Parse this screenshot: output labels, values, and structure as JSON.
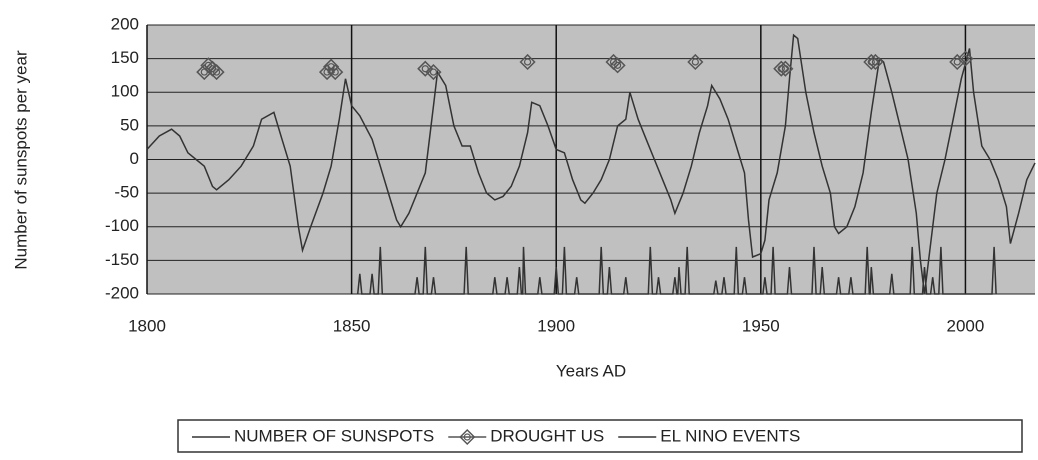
{
  "chart_data": {
    "type": "line",
    "y_label": "Number of sunspots per year",
    "x_label": "Years AD",
    "xlim": [
      1800,
      2017
    ],
    "xticks": [
      1800,
      1850,
      1900,
      1950,
      2000
    ],
    "ylim": [
      -200,
      200
    ],
    "yticks": [
      -200,
      -150,
      -100,
      -50,
      0,
      50,
      100,
      150,
      200
    ],
    "grid": true,
    "plot_background": "#c0c0c0",
    "legend": "bottom",
    "series": [
      {
        "name": "NUMBER OF SUNSPOTS",
        "color": "#333333",
        "style": "line",
        "x": [
          1800,
          1803,
          1806,
          1808,
          1810,
          1812,
          1814,
          1816,
          1817,
          1820,
          1823,
          1826,
          1828,
          1831,
          1833,
          1835,
          1837,
          1838,
          1840,
          1843,
          1845,
          1847,
          1848.5,
          1850,
          1852,
          1855,
          1857,
          1859,
          1861,
          1862,
          1864,
          1866,
          1868,
          1870,
          1871,
          1873,
          1875,
          1877,
          1879,
          1881,
          1883,
          1885,
          1887,
          1889,
          1891,
          1893,
          1894,
          1896,
          1898,
          1900,
          1902,
          1904,
          1906,
          1907,
          1909,
          1911,
          1913,
          1915,
          1917,
          1918,
          1920,
          1922,
          1924,
          1926,
          1928,
          1929,
          1931,
          1933,
          1935,
          1937,
          1938,
          1940,
          1942,
          1944,
          1946,
          1947,
          1948,
          1950,
          1951,
          1952,
          1954,
          1956,
          1957,
          1958,
          1959,
          1961,
          1963,
          1965,
          1967,
          1968,
          1969,
          1971,
          1973,
          1975,
          1977,
          1979,
          1980,
          1982,
          1984,
          1986,
          1988,
          1989,
          1990,
          1991,
          1993,
          1995,
          1997,
          1999,
          2001,
          2002,
          2004,
          2006,
          2008,
          2010,
          2011,
          2013,
          2015,
          2017
        ],
        "values": [
          15,
          35,
          45,
          35,
          10,
          0,
          -10,
          -40,
          -45,
          -30,
          -10,
          20,
          60,
          70,
          30,
          -10,
          -100,
          -135,
          -100,
          -50,
          -10,
          60,
          120,
          80,
          65,
          30,
          -10,
          -50,
          -90,
          -100,
          -80,
          -50,
          -20,
          80,
          130,
          110,
          50,
          20,
          20,
          -20,
          -50,
          -60,
          -55,
          -40,
          -10,
          40,
          85,
          80,
          50,
          15,
          10,
          -30,
          -60,
          -65,
          -50,
          -30,
          0,
          50,
          60,
          100,
          60,
          30,
          0,
          -30,
          -60,
          -80,
          -50,
          -10,
          40,
          80,
          110,
          90,
          60,
          20,
          -20,
          -90,
          -145,
          -140,
          -120,
          -60,
          -20,
          50,
          120,
          185,
          180,
          100,
          40,
          -10,
          -50,
          -100,
          -110,
          -100,
          -70,
          -20,
          70,
          150,
          145,
          100,
          50,
          0,
          -80,
          -150,
          -200,
          -150,
          -50,
          0,
          60,
          120,
          165,
          100,
          20,
          0,
          -30,
          -70,
          -125,
          -80,
          -30,
          -5
        ]
      },
      {
        "name": "DROUGHT US",
        "color": "#555555",
        "style": "marker",
        "x": [
          1814,
          1815,
          1816,
          1817,
          1844,
          1845,
          1846,
          1868,
          1870,
          1893,
          1914,
          1915,
          1934,
          1955,
          1956,
          1977,
          1978,
          1998,
          2000
        ],
        "values": [
          130,
          140,
          135,
          130,
          130,
          138,
          130,
          135,
          130,
          145,
          145,
          140,
          145,
          135,
          135,
          145,
          145,
          145,
          150
        ]
      },
      {
        "name": "EL NINO EVENTS",
        "color": "#333333",
        "style": "line",
        "x": [
          1851.5,
          1852,
          1852.5,
          1854.5,
          1855,
          1855.5,
          1856.5,
          1857,
          1857.5,
          1865.5,
          1866,
          1866.5,
          1867.5,
          1868,
          1868.5,
          1869.5,
          1870,
          1870.5,
          1877.5,
          1878,
          1878.5,
          1884.5,
          1885,
          1885.5,
          1887.5,
          1888,
          1888.5,
          1890.5,
          1891,
          1891.5,
          1891.8,
          1892,
          1892.5,
          1895.5,
          1896,
          1896.5,
          1899.5,
          1900,
          1900.5,
          1901.5,
          1902,
          1902.5,
          1904.5,
          1905,
          1905.5,
          1910.5,
          1911,
          1911.5,
          1912.5,
          1913,
          1913.5,
          1916.5,
          1917,
          1917.5,
          1922.5,
          1923,
          1923.5,
          1924.5,
          1925,
          1925.5,
          1928.5,
          1929,
          1929.5,
          1929.7,
          1930,
          1930.5,
          1931.5,
          1932,
          1932.5,
          1938.5,
          1939,
          1939.5,
          1940.5,
          1941,
          1941.5,
          1943.5,
          1944,
          1944.5,
          1945.5,
          1946,
          1946.5,
          1950.5,
          1951,
          1951.5,
          1952.5,
          1953,
          1953.5,
          1956.5,
          1957,
          1957.5,
          1962.5,
          1963,
          1963.5,
          1964.5,
          1965,
          1965.5,
          1968.5,
          1969,
          1969.5,
          1971.5,
          1972,
          1972.5,
          1975.5,
          1976,
          1976.5,
          1976.7,
          1977,
          1977.5,
          1981.5,
          1982,
          1982.5,
          1986.5,
          1987,
          1987.5,
          1989.5,
          1990,
          1990.5,
          1991.5,
          1992,
          1992.5,
          1993.5,
          1994,
          1994.5,
          2006.5,
          2007,
          2007.5
        ],
        "values": [
          -200,
          -170,
          -200,
          -200,
          -170,
          -200,
          -200,
          -130,
          -200,
          -200,
          -175,
          -200,
          -200,
          -130,
          -200,
          -200,
          -175,
          -200,
          -200,
          -130,
          -200,
          -200,
          -175,
          -200,
          -200,
          -175,
          -200,
          -200,
          -160,
          -200,
          -200,
          -130,
          -200,
          -200,
          -175,
          -200,
          -200,
          -160,
          -200,
          -200,
          -130,
          -200,
          -200,
          -175,
          -200,
          -200,
          -130,
          -200,
          -200,
          -160,
          -200,
          -200,
          -175,
          -200,
          -200,
          -130,
          -200,
          -200,
          -175,
          -200,
          -200,
          -175,
          -200,
          -200,
          -160,
          -200,
          -200,
          -130,
          -200,
          -200,
          -180,
          -200,
          -200,
          -175,
          -200,
          -200,
          -130,
          -200,
          -200,
          -175,
          -200,
          -200,
          -175,
          -200,
          -200,
          -130,
          -200,
          -200,
          -160,
          -200,
          -200,
          -130,
          -200,
          -200,
          -160,
          -200,
          -200,
          -175,
          -200,
          -200,
          -175,
          -200,
          -200,
          -130,
          -200,
          -200,
          -160,
          -200,
          -200,
          -170,
          -200,
          -200,
          -130,
          -200,
          -200,
          -160,
          -200,
          -200,
          -175,
          -200,
          -200,
          -130,
          -200,
          -200,
          -130,
          -200
        ]
      }
    ]
  }
}
